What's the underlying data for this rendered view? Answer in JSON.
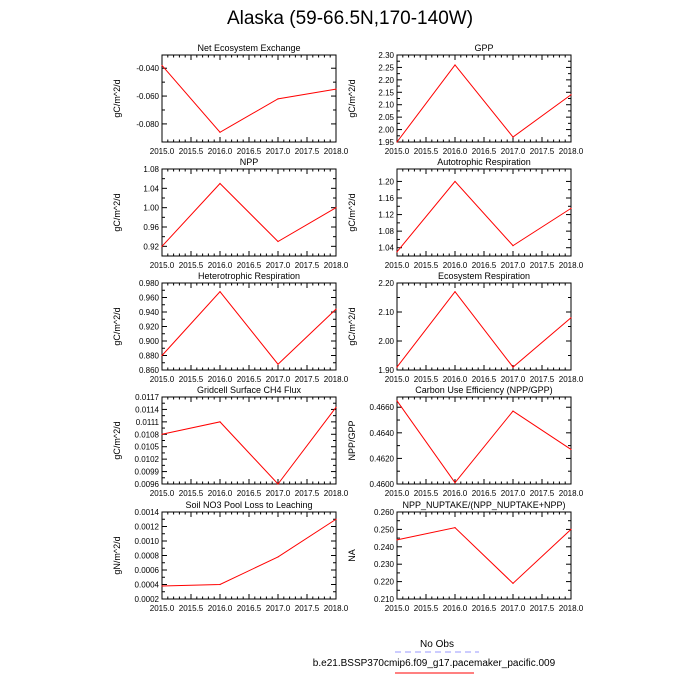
{
  "page": {
    "title": "Alaska (59-66.5N,170-140W)"
  },
  "colors": {
    "model_line": "#ff0000",
    "obs_line": "#9999ff"
  },
  "legend": {
    "obs_label": "No Obs",
    "model_label": "b.e21.BSSP370cmip6.f09_g17.pacemaker_pacific.009"
  },
  "chart_data": [
    {
      "type": "line",
      "title": "Net Ecosystem Exchange",
      "ylabel": "gC/m^2/d",
      "xlim": [
        2015,
        2018
      ],
      "ylim": [
        -0.093,
        -0.0305
      ],
      "yticks": [
        -0.04,
        -0.06,
        -0.08
      ],
      "ytick_labels": [
        "-0.040",
        "-0.060",
        "-0.080"
      ],
      "xticks": [
        2015,
        2015.5,
        2016,
        2016.5,
        2017,
        2017.5,
        2018
      ],
      "xtick_labels": [
        "2015.0",
        "2015.5",
        "2016.0",
        "2016.5",
        "2017.0",
        "2017.5",
        "2018.0"
      ],
      "series": [
        {
          "x": [
            2015,
            2016,
            2017,
            2018
          ],
          "y": [
            -0.038,
            -0.086,
            -0.062,
            -0.055
          ]
        }
      ]
    },
    {
      "type": "line",
      "title": "GPP",
      "ylabel": "gC/m^2/d",
      "xlim": [
        2015,
        2018
      ],
      "ylim": [
        1.95,
        2.3
      ],
      "yticks": [
        1.95,
        2.0,
        2.05,
        2.1,
        2.15,
        2.2,
        2.25,
        2.3
      ],
      "ytick_labels": [
        "1.95",
        "2.00",
        "2.05",
        "2.10",
        "2.15",
        "2.20",
        "2.25",
        "2.30"
      ],
      "xticks": [
        2015,
        2015.5,
        2016,
        2016.5,
        2017,
        2017.5,
        2018
      ],
      "xtick_labels": [
        "2015.0",
        "2015.5",
        "2016.0",
        "2016.5",
        "2017.0",
        "2017.5",
        "2018.0"
      ],
      "series": [
        {
          "x": [
            2015,
            2016,
            2017,
            2018
          ],
          "y": [
            1.95,
            2.26,
            1.97,
            2.14
          ]
        }
      ]
    },
    {
      "type": "line",
      "title": "NPP",
      "ylabel": "gC/m^2/d",
      "xlim": [
        2015,
        2018
      ],
      "ylim": [
        0.9,
        1.08
      ],
      "yticks": [
        0.92,
        0.96,
        1.0,
        1.04,
        1.08
      ],
      "ytick_labels": [
        "0.92",
        "0.96",
        "1.00",
        "1.04",
        "1.08"
      ],
      "xticks": [
        2015,
        2015.5,
        2016,
        2016.5,
        2017,
        2017.5,
        2018
      ],
      "xtick_labels": [
        "2015.0",
        "2015.5",
        "2016.0",
        "2016.5",
        "2017.0",
        "2017.5",
        "2018.0"
      ],
      "series": [
        {
          "x": [
            2015,
            2016,
            2017,
            2018
          ],
          "y": [
            0.92,
            1.05,
            0.93,
            1.0
          ]
        }
      ]
    },
    {
      "type": "line",
      "title": "Autotrophic Respiration",
      "ylabel": "gC/m^2/d",
      "xlim": [
        2015,
        2018
      ],
      "ylim": [
        1.02,
        1.23
      ],
      "yticks": [
        1.04,
        1.08,
        1.12,
        1.16,
        1.2
      ],
      "ytick_labels": [
        "1.04",
        "1.08",
        "1.12",
        "1.16",
        "1.20"
      ],
      "xticks": [
        2015,
        2015.5,
        2016,
        2016.5,
        2017,
        2017.5,
        2018
      ],
      "xtick_labels": [
        "2015.0",
        "2015.5",
        "2016.0",
        "2016.5",
        "2017.0",
        "2017.5",
        "2018.0"
      ],
      "series": [
        {
          "x": [
            2015,
            2016,
            2017,
            2018
          ],
          "y": [
            1.03,
            1.2,
            1.045,
            1.135
          ]
        }
      ]
    },
    {
      "type": "line",
      "title": "Heterotrophic Respiration",
      "ylabel": "gC/m^2/d",
      "xlim": [
        2015,
        2018
      ],
      "ylim": [
        0.86,
        0.98
      ],
      "yticks": [
        0.86,
        0.88,
        0.9,
        0.92,
        0.94,
        0.96,
        0.98
      ],
      "ytick_labels": [
        "0.860",
        "0.880",
        "0.900",
        "0.920",
        "0.940",
        "0.960",
        "0.980"
      ],
      "xticks": [
        2015,
        2015.5,
        2016,
        2016.5,
        2017,
        2017.5,
        2018
      ],
      "xtick_labels": [
        "2015.0",
        "2015.5",
        "2016.0",
        "2016.5",
        "2017.0",
        "2017.5",
        "2018.0"
      ],
      "series": [
        {
          "x": [
            2015,
            2016,
            2017,
            2018
          ],
          "y": [
            0.88,
            0.968,
            0.868,
            0.944
          ]
        }
      ]
    },
    {
      "type": "line",
      "title": "Ecosystem Respiration",
      "ylabel": "gC/m^2/d",
      "xlim": [
        2015,
        2018
      ],
      "ylim": [
        1.9,
        2.2
      ],
      "yticks": [
        1.9,
        2.0,
        2.1,
        2.2
      ],
      "ytick_labels": [
        "1.90",
        "2.00",
        "2.10",
        "2.20"
      ],
      "xticks": [
        2015,
        2015.5,
        2016,
        2016.5,
        2017,
        2017.5,
        2018
      ],
      "xtick_labels": [
        "2015.0",
        "2015.5",
        "2016.0",
        "2016.5",
        "2017.0",
        "2017.5",
        "2018.0"
      ],
      "series": [
        {
          "x": [
            2015,
            2016,
            2017,
            2018
          ],
          "y": [
            1.91,
            2.17,
            1.91,
            2.08
          ]
        }
      ]
    },
    {
      "type": "line",
      "title": "Gridcell Surface CH4 Flux",
      "ylabel": "gC/m^2/d",
      "xlim": [
        2015,
        2018
      ],
      "ylim": [
        0.0096,
        0.0117
      ],
      "yticks": [
        0.0096,
        0.0099,
        0.0102,
        0.0105,
        0.0108,
        0.0111,
        0.0114,
        0.0117
      ],
      "ytick_labels": [
        "0.0096",
        "0.0099",
        "0.0102",
        "0.0105",
        "0.0108",
        "0.0111",
        "0.0114",
        "0.0117"
      ],
      "xticks": [
        2015,
        2015.5,
        2016,
        2016.5,
        2017,
        2017.5,
        2018
      ],
      "xtick_labels": [
        "2015.0",
        "2015.5",
        "2016.0",
        "2016.5",
        "2017.0",
        "2017.5",
        "2018.0"
      ],
      "series": [
        {
          "x": [
            2015,
            2016,
            2017,
            2018
          ],
          "y": [
            0.0108,
            0.0111,
            0.0096,
            0.01145
          ]
        }
      ]
    },
    {
      "type": "line",
      "title": "Carbon Use Efficiency (NPP/GPP)",
      "ylabel": "NPP/GPP",
      "xlim": [
        2015,
        2018
      ],
      "ylim": [
        0.46,
        0.4668
      ],
      "yticks": [
        0.46,
        0.462,
        0.464,
        0.466
      ],
      "ytick_labels": [
        "0.4600",
        "0.4620",
        "0.4640",
        "0.4660"
      ],
      "xticks": [
        2015,
        2015.5,
        2016,
        2016.5,
        2017,
        2017.5,
        2018
      ],
      "xtick_labels": [
        "2015.0",
        "2015.5",
        "2016.0",
        "2016.5",
        "2017.0",
        "2017.5",
        "2018.0"
      ],
      "series": [
        {
          "x": [
            2015,
            2016,
            2017,
            2018
          ],
          "y": [
            0.4665,
            0.4601,
            0.4657,
            0.4627
          ]
        }
      ]
    },
    {
      "type": "line",
      "title": "Soil NO3 Pool Loss to Leaching",
      "ylabel": "gN/m^2/d",
      "xlim": [
        2015,
        2018
      ],
      "ylim": [
        0.0002,
        0.0014
      ],
      "yticks": [
        0.0002,
        0.0004,
        0.0006,
        0.0008,
        0.001,
        0.0012,
        0.0014
      ],
      "ytick_labels": [
        "0.0002",
        "0.0004",
        "0.0006",
        "0.0008",
        "0.0010",
        "0.0012",
        "0.0014"
      ],
      "xticks": [
        2015,
        2015.5,
        2016,
        2016.5,
        2017,
        2017.5,
        2018
      ],
      "xtick_labels": [
        "2015.0",
        "2015.5",
        "2016.0",
        "2016.5",
        "2017.0",
        "2017.5",
        "2018.0"
      ],
      "series": [
        {
          "x": [
            2015,
            2016,
            2017,
            2018
          ],
          "y": [
            0.00038,
            0.0004,
            0.00078,
            0.0013
          ]
        }
      ]
    },
    {
      "type": "line",
      "title": "NPP_NUPTAKE/(NPP_NUPTAKE+NPP)",
      "ylabel": "NA",
      "xlim": [
        2015,
        2018
      ],
      "ylim": [
        0.21,
        0.26
      ],
      "yticks": [
        0.21,
        0.22,
        0.23,
        0.24,
        0.25,
        0.26
      ],
      "ytick_labels": [
        "0.210",
        "0.220",
        "0.230",
        "0.240",
        "0.250",
        "0.260"
      ],
      "xticks": [
        2015,
        2015.5,
        2016,
        2016.5,
        2017,
        2017.5,
        2018
      ],
      "xtick_labels": [
        "2015.0",
        "2015.5",
        "2016.0",
        "2016.5",
        "2017.0",
        "2017.5",
        "2018.0"
      ],
      "series": [
        {
          "x": [
            2015,
            2016,
            2017,
            2018
          ],
          "y": [
            0.244,
            0.251,
            0.219,
            0.25
          ]
        }
      ]
    }
  ]
}
